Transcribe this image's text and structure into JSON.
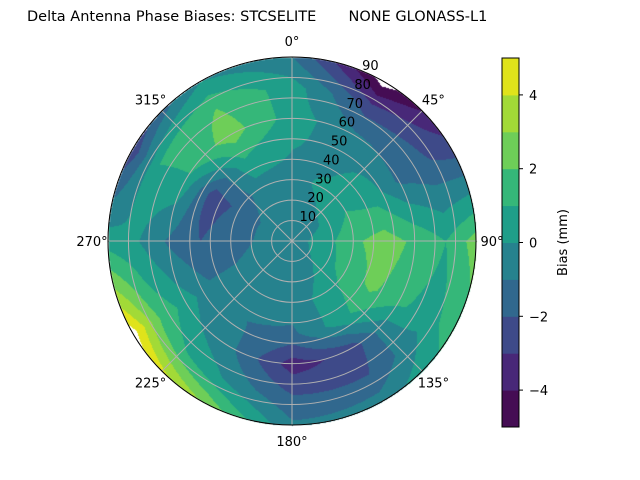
{
  "chart_data": {
    "type": "heatmap",
    "subtype": "polar-filled-contour",
    "title": "Delta Antenna Phase Biases: STCSELITE       NONE GLONASS-L1",
    "angular_tick_labels": [
      "0°",
      "45°",
      "90°",
      "135°",
      "180°",
      "225°",
      "270°",
      "315°"
    ],
    "angular_ticks_deg": [
      0,
      45,
      90,
      135,
      180,
      225,
      270,
      315
    ],
    "angular_direction": "clockwise",
    "angular_zero": "top",
    "radial_tick_labels": [
      "10",
      "20",
      "30",
      "40",
      "50",
      "60",
      "70",
      "80",
      "90"
    ],
    "radial_ticks": [
      10,
      20,
      30,
      40,
      50,
      60,
      70,
      80,
      90
    ],
    "rlim": [
      0,
      90
    ],
    "grid": true,
    "colorbar": {
      "label": "Bias (mm)",
      "levels": [
        -5,
        -4,
        -3,
        -2,
        -1,
        0,
        1,
        2,
        3,
        4,
        5
      ],
      "tick_labels": [
        "−4",
        "−2",
        "0",
        "2",
        "4"
      ],
      "ticks": [
        -4,
        -2,
        0,
        2,
        4
      ],
      "colors": [
        "#440f56",
        "#472c7a",
        "#3b518b",
        "#2c718e",
        "#21908d",
        "#27ad81",
        "#5cc863",
        "#aadc32",
        "#fde725"
      ],
      "band_colors": [
        "#450d54",
        "#482878",
        "#3e4a89",
        "#31688e",
        "#26828e",
        "#1f9e89",
        "#35b779",
        "#6ece58",
        "#a2da37",
        "#e0e31b"
      ]
    },
    "grid_azimuths_deg": [
      0,
      30,
      60,
      90,
      120,
      150,
      180,
      210,
      240,
      270,
      300,
      330
    ],
    "grid_zeniths_deg": [
      0,
      15,
      30,
      45,
      60,
      75,
      90
    ],
    "values_mm": [
      [
        -0.5,
        -0.5,
        -0.5,
        -0.5,
        -0.5,
        -0.5,
        -0.5,
        -0.5,
        -0.5,
        -0.5,
        -0.5,
        -0.5
      ],
      [
        -0.4,
        -0.2,
        0,
        0.5,
        0.3,
        -0.2,
        -0.5,
        -0.6,
        -0.6,
        -0.8,
        -0.8,
        -0.5
      ],
      [
        -0.3,
        0.2,
        1,
        1.8,
        1.5,
        0.3,
        -0.5,
        -0.5,
        -0.8,
        -1.5,
        -1.8,
        -0.5
      ],
      [
        0,
        -0.3,
        0.5,
        2.5,
        2.2,
        0.5,
        -1.2,
        -1,
        -0.8,
        -2,
        -2.5,
        0.8
      ],
      [
        0.5,
        -0.8,
        -1.2,
        1.8,
        1.2,
        -2.5,
        -3.5,
        -0.8,
        0.5,
        -1.2,
        0.8,
        2.5
      ],
      [
        0.5,
        -2.5,
        -1.8,
        1,
        0.5,
        -2,
        -2,
        0.2,
        2,
        0,
        1,
        2
      ],
      [
        -1,
        -5.5,
        -2.5,
        2.5,
        1.5,
        -0.5,
        -0.8,
        3,
        5.5,
        0.5,
        -2.8,
        0
      ]
    ]
  }
}
